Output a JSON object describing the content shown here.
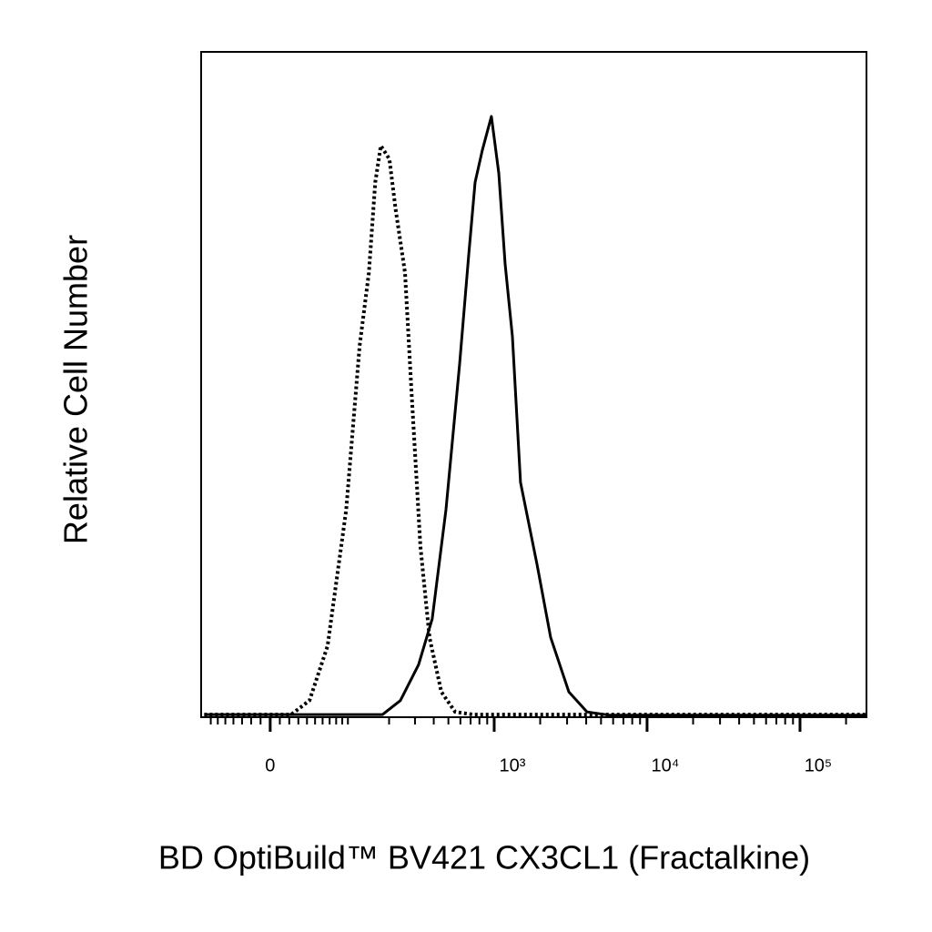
{
  "chart_data": {
    "type": "line",
    "xlabel": "BD OptiBuild™ BV421 CX3CL1 (Fractalkine)",
    "ylabel": "Relative Cell Number",
    "xscale": "biexponential",
    "xlim": [
      -85,
      272000
    ],
    "ylim": [
      0,
      100
    ],
    "xticks": [
      0,
      {
        "value": 1000,
        "label": "10³"
      },
      {
        "value": 10000,
        "label": "10⁴"
      },
      {
        "value": 100000,
        "label": "10⁵"
      }
    ],
    "xminorticks": [
      -70,
      -60,
      -50,
      -40,
      -30,
      -20,
      -10,
      10,
      20,
      30,
      40,
      50,
      60,
      70,
      80,
      90,
      100,
      200,
      300,
      400,
      500,
      600,
      700,
      800,
      900,
      2000,
      3000,
      4000,
      5000,
      6000,
      7000,
      8000,
      9000,
      20000,
      30000,
      40000,
      50000,
      60000,
      70000,
      80000,
      90000,
      200000
    ],
    "series": [
      {
        "color": "#000000",
        "linestyle": "dotted",
        "x": [
          -80,
          22,
          43,
          67,
          97,
          123,
          144,
          160,
          175,
          201,
          222,
          257,
          284,
          326,
          375,
          449,
          554,
          729,
          270000
        ],
        "values": [
          0.4,
          0.4,
          2.5,
          10.7,
          31.2,
          55.8,
          66.8,
          80.4,
          85.9,
          83.9,
          76.3,
          66.8,
          49.0,
          25.7,
          12.0,
          3.8,
          0.8,
          0.4,
          0.4
        ]
      },
      {
        "color": "#000000",
        "linestyle": "solid",
        "x": [
          -80,
          180,
          239,
          317,
          391,
          482,
          593,
          681,
          749,
          836,
          958,
          1071,
          1179,
          1316,
          1488,
          1905,
          2340,
          3078,
          4050,
          5700,
          270000
        ],
        "values": [
          0.4,
          0.4,
          2.5,
          7.9,
          14.8,
          31.2,
          53.1,
          69.5,
          80.4,
          85.2,
          90.3,
          81.8,
          68.1,
          57.2,
          35.3,
          23.0,
          12.0,
          3.8,
          0.8,
          0.3,
          0.3
        ]
      }
    ]
  }
}
